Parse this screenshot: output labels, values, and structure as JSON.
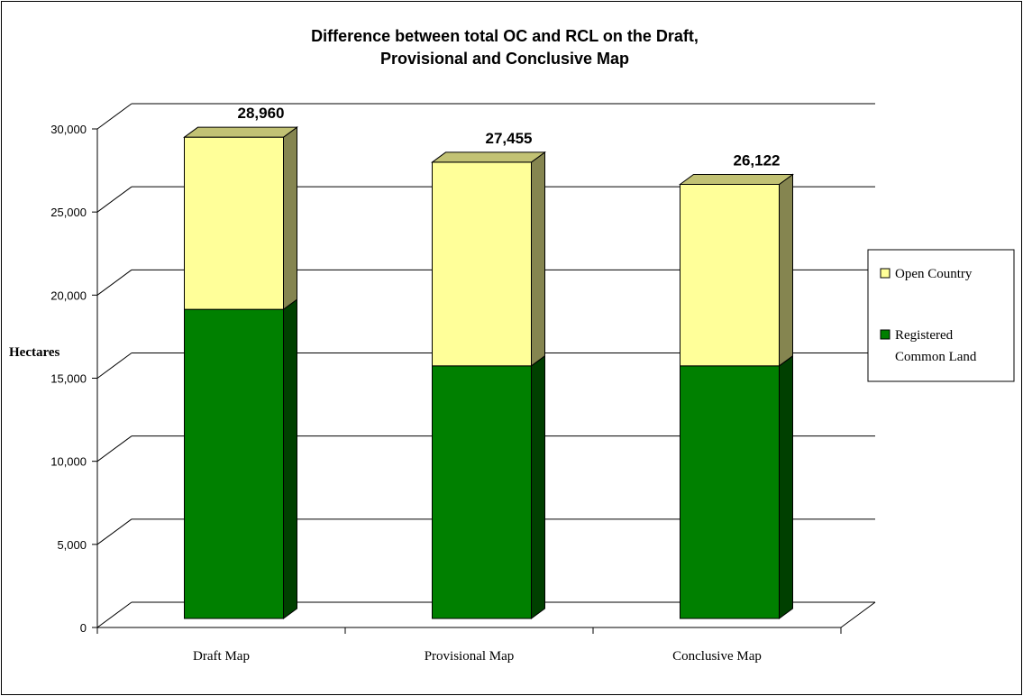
{
  "chart_data": {
    "type": "bar",
    "stacked": true,
    "three_d": true,
    "title": "Difference between total OC and RCL on the Draft, Provisional and Conclusive Map",
    "title_lines": [
      "Difference between total OC and RCL on the Draft,",
      "Provisional and Conclusive Map"
    ],
    "ylabel": "Hectares",
    "xlabel": "",
    "categories": [
      "Draft Map",
      "Provisional Map",
      "Conclusive Map"
    ],
    "series": [
      {
        "name": "Registered Common Land",
        "name_lines": [
          "Registered",
          "Common Land"
        ],
        "color": "#008000",
        "values": [
          18600,
          15200,
          15200
        ]
      },
      {
        "name": "Open Country",
        "name_lines": [
          "Open Country"
        ],
        "color": "#ffff99",
        "values": [
          10360,
          12255,
          10922
        ]
      }
    ],
    "totals": [
      28960,
      27455,
      26122
    ],
    "total_labels": [
      "28,960",
      "27,455",
      "26,122"
    ],
    "ylim": [
      0,
      30000
    ],
    "yticks": [
      0,
      5000,
      10000,
      15000,
      20000,
      25000,
      30000
    ],
    "ytick_labels": [
      "0",
      "5,000",
      "10,000",
      "15,000",
      "20,000",
      "25,000",
      "30,000"
    ],
    "grid": true,
    "legend_position": "right"
  }
}
